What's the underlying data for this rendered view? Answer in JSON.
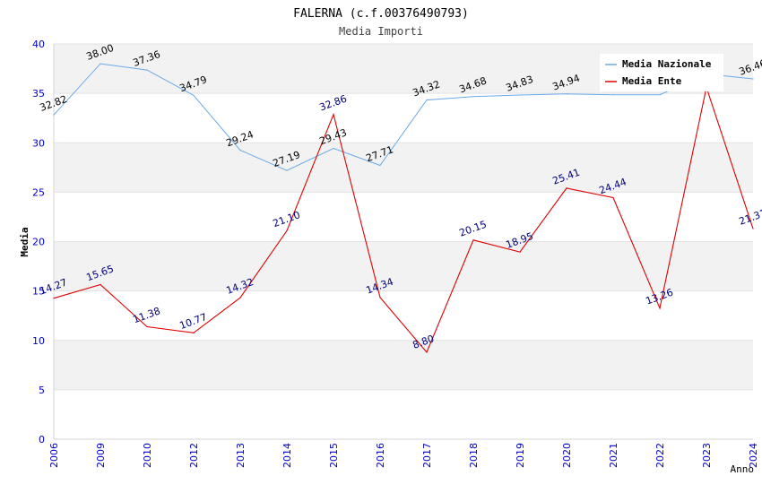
{
  "chart_data": {
    "type": "line",
    "title": "FALERNA (c.f.00376490793)",
    "subtitle": "Media Importi",
    "xlabel": "Anno",
    "ylabel": "Media",
    "ylim": [
      0,
      40
    ],
    "yticks": [
      0,
      5,
      10,
      15,
      20,
      25,
      30,
      35,
      40
    ],
    "grid": "horizontal bands",
    "legend_position": "top-right",
    "categories": [
      "2006",
      "2009",
      "2010",
      "2012",
      "2013",
      "2014",
      "2015",
      "2016",
      "2017",
      "2018",
      "2019",
      "2020",
      "2021",
      "2022",
      "2023",
      "2024"
    ],
    "series": [
      {
        "name": "Media Nazionale",
        "color": "#6aaae6",
        "label_color": "#000000",
        "values": [
          32.82,
          38.0,
          37.36,
          34.79,
          29.24,
          27.19,
          29.43,
          27.71,
          34.32,
          34.68,
          34.83,
          34.94,
          34.86,
          34.86,
          36.96,
          36.46
        ],
        "labels": [
          "32.82",
          "38.00",
          "37.36",
          "34.79",
          "29.24",
          "27.19",
          "29.43",
          "27.71",
          "34.32",
          "34.68",
          "34.83",
          "34.94",
          "",
          "",
          "",
          "36.46"
        ]
      },
      {
        "name": "Media Ente",
        "color": "#e00000",
        "label_color": "#00007a",
        "values": [
          14.27,
          15.65,
          11.38,
          10.77,
          14.32,
          21.1,
          32.86,
          14.34,
          8.8,
          20.15,
          18.95,
          25.41,
          24.44,
          13.26,
          35.6,
          21.31
        ],
        "labels": [
          "14.27",
          "15.65",
          "11.38",
          "10.77",
          "14.32",
          "21.10",
          "32.86",
          "14.34",
          "8.80",
          "20.15",
          "18.95",
          "25.41",
          "24.44",
          "13.26",
          "",
          "21.31"
        ]
      }
    ]
  }
}
